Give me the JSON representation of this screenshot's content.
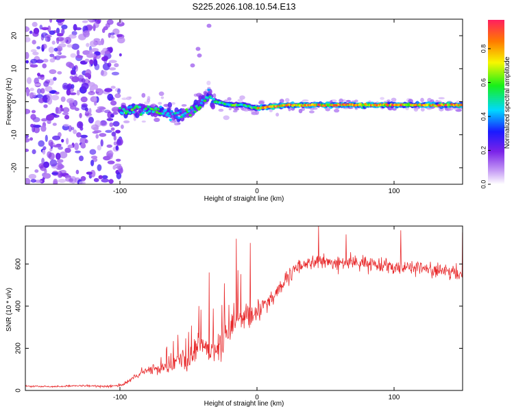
{
  "chart_data": [
    {
      "type": "heatmap",
      "title": "S225.2026.108.10.54.E13",
      "xlabel": "Height of straight line (km)",
      "ylabel": "Frequency (Hz)",
      "xlim": [
        -169,
        150
      ],
      "ylim": [
        -25,
        25
      ],
      "xticks": [
        -100,
        0,
        100
      ],
      "yticks": [
        -20,
        -10,
        0,
        10,
        20
      ],
      "colorbar": {
        "label": "Normalized spectral amplitude",
        "range": [
          0,
          0.97
        ],
        "ticks": [
          "0.0",
          "0.2",
          "0.4",
          "0.6",
          "0.8"
        ]
      },
      "ridge": {
        "description_points_x": [
          -100,
          -85,
          -70,
          -55,
          -45,
          -35,
          -30,
          -20,
          -10,
          0,
          20,
          40,
          60,
          80,
          100,
          120,
          140,
          150
        ],
        "frequency_hz": [
          -3,
          -2,
          -3,
          -4,
          -2,
          2,
          0,
          -1,
          -1,
          -2,
          -1,
          -1,
          -1,
          -1,
          -1,
          -1,
          -1,
          -1
        ]
      }
    },
    {
      "type": "line",
      "xlabel": "Height of straight line (km)",
      "ylabel": "SNR (10 * v/v)",
      "xlim": [
        -169,
        150
      ],
      "ylim": [
        0,
        780
      ],
      "xticks": [
        -100,
        0,
        100
      ],
      "yticks": [
        0,
        200,
        400,
        600
      ],
      "series": [
        {
          "name": "SNR",
          "color": "#e8292b",
          "x": [
            -169,
            -150,
            -130,
            -110,
            -100,
            -95,
            -90,
            -85,
            -80,
            -75,
            -70,
            -65,
            -60,
            -55,
            -50,
            -45,
            -40,
            -35,
            -30,
            -25,
            -20,
            -15,
            -10,
            -5,
            0,
            5,
            10,
            15,
            20,
            25,
            30,
            40,
            50,
            60,
            70,
            80,
            90,
            100,
            110,
            120,
            130,
            140,
            150
          ],
          "values": [
            20,
            18,
            22,
            20,
            25,
            35,
            60,
            80,
            95,
            100,
            105,
            120,
            140,
            150,
            130,
            190,
            230,
            180,
            200,
            240,
            280,
            330,
            330,
            350,
            380,
            410,
            430,
            480,
            510,
            550,
            590,
            610,
            610,
            600,
            610,
            600,
            600,
            590,
            590,
            580,
            570,
            560,
            550
          ],
          "noise": [
            5,
            5,
            5,
            8,
            10,
            15,
            20,
            25,
            30,
            35,
            40,
            50,
            60,
            65,
            70,
            80,
            90,
            90,
            90,
            100,
            110,
            110,
            100,
            90,
            80,
            70,
            60,
            55,
            50,
            45,
            45,
            45,
            45,
            45,
            45,
            45,
            45,
            45,
            45,
            45,
            45,
            45,
            45
          ],
          "peaks": [
            [
              -35,
              560
            ],
            [
              -15,
              720
            ],
            [
              -5,
              700
            ],
            [
              45,
              780
            ],
            [
              65,
              740
            ],
            [
              105,
              760
            ],
            [
              150,
              750
            ]
          ]
        }
      ]
    }
  ]
}
